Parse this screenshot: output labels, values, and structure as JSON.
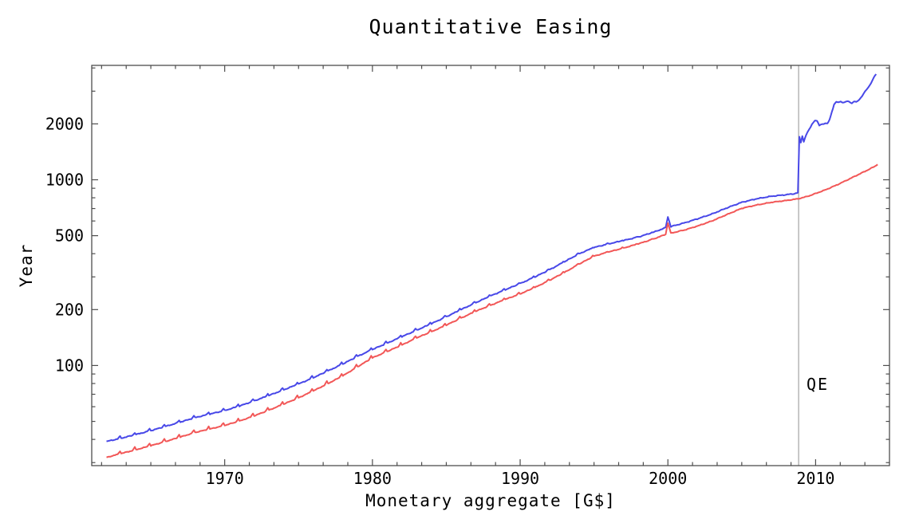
{
  "chart_data": {
    "type": "line",
    "title": "Quantitative Easing",
    "xlabel": "Monetary aggregate [G$]",
    "ylabel": "Year",
    "x_range": [
      1961,
      2015
    ],
    "y_range": [
      28.9,
      4130
    ],
    "y_scale": "log",
    "background": "#ffffff",
    "axis_color": "#4d4d4d",
    "x_axis": {
      "tick_values": [
        1970,
        1980,
        1990,
        2000,
        2010
      ],
      "tick_labels": [
        "1970",
        "1980",
        "1990",
        "2000",
        "2010"
      ],
      "minor_tick_step_years": 1.6667
    },
    "y_axis": {
      "tick_values": [
        100,
        200,
        500,
        1000,
        2000
      ],
      "tick_labels": [
        "100",
        "200",
        "500",
        "1000",
        "2000"
      ],
      "minor_tick_values": [
        30,
        40,
        50,
        60,
        70,
        80,
        90,
        300,
        400,
        600,
        700,
        800,
        900,
        3000,
        4000
      ]
    },
    "qe_line": {
      "x": 2008.85,
      "label": "QE",
      "color": "#aaaaaa"
    },
    "series": [
      {
        "name": "monetary-base-blue",
        "color": "#4848e8",
        "jitter": 0.006,
        "jitter_phase": 0,
        "annual_spike": {
          "amplitude": 0.032,
          "fade_start": 1980,
          "fade_end": 2003
        },
        "points": [
          [
            1962,
            39
          ],
          [
            1963,
            40.6
          ],
          [
            1964,
            42.5
          ],
          [
            1965,
            44.6
          ],
          [
            1966,
            47
          ],
          [
            1967,
            49.6
          ],
          [
            1968,
            52.4
          ],
          [
            1969,
            54.8
          ],
          [
            1970,
            57.2
          ],
          [
            1971,
            60.5
          ],
          [
            1972,
            64.5
          ],
          [
            1973,
            69
          ],
          [
            1974,
            74
          ],
          [
            1975,
            79.5
          ],
          [
            1976,
            86
          ],
          [
            1977,
            93.5
          ],
          [
            1978,
            102
          ],
          [
            1979,
            112
          ],
          [
            1980,
            122
          ],
          [
            1981,
            132
          ],
          [
            1982,
            143
          ],
          [
            1983,
            155
          ],
          [
            1984,
            168
          ],
          [
            1985,
            183
          ],
          [
            1986,
            200
          ],
          [
            1987,
            218
          ],
          [
            1988,
            237
          ],
          [
            1989,
            256
          ],
          [
            1990,
            276
          ],
          [
            1991,
            300
          ],
          [
            1992,
            328
          ],
          [
            1993,
            362
          ],
          [
            1994,
            400
          ],
          [
            1995,
            432
          ],
          [
            1996,
            452
          ],
          [
            1997,
            471
          ],
          [
            1998,
            492
          ],
          [
            1999,
            521
          ],
          [
            1999.85,
            552
          ],
          [
            2000,
            632
          ],
          [
            2000.2,
            560
          ],
          [
            2001,
            582
          ],
          [
            2002,
            616
          ],
          [
            2003,
            655
          ],
          [
            2004,
            706
          ],
          [
            2005,
            756
          ],
          [
            2006,
            790
          ],
          [
            2007,
            815
          ],
          [
            2008,
            831
          ],
          [
            2008.5,
            840
          ],
          [
            2008.8,
            851
          ],
          [
            2008.9,
            1700
          ],
          [
            2009,
            1585
          ],
          [
            2009.1,
            1725
          ],
          [
            2009.2,
            1605
          ],
          [
            2009.35,
            1740
          ],
          [
            2009.55,
            1855
          ],
          [
            2009.75,
            1990
          ],
          [
            2009.95,
            2090
          ],
          [
            2010.1,
            2065
          ],
          [
            2010.25,
            1962
          ],
          [
            2010.45,
            2000
          ],
          [
            2010.65,
            2008
          ],
          [
            2010.8,
            2005
          ],
          [
            2010.95,
            2110
          ],
          [
            2011.1,
            2330
          ],
          [
            2011.25,
            2540
          ],
          [
            2011.4,
            2625
          ],
          [
            2011.55,
            2605
          ],
          [
            2011.7,
            2650
          ],
          [
            2011.85,
            2600
          ],
          [
            2012.05,
            2630
          ],
          [
            2012.25,
            2645
          ],
          [
            2012.45,
            2580
          ],
          [
            2012.6,
            2645
          ],
          [
            2012.75,
            2615
          ],
          [
            2012.95,
            2700
          ],
          [
            2013.15,
            2830
          ],
          [
            2013.35,
            2985
          ],
          [
            2013.55,
            3130
          ],
          [
            2013.75,
            3320
          ],
          [
            2013.95,
            3560
          ],
          [
            2014.1,
            3710
          ]
        ]
      },
      {
        "name": "currency-red",
        "color": "#f25757",
        "jitter": 0.005,
        "jitter_phase": 2.1,
        "annual_spike": {
          "amplitude": 0.042,
          "fade_start": 1980,
          "fade_end": 2003
        },
        "points": [
          [
            1962,
            32
          ],
          [
            1963,
            33.6
          ],
          [
            1964,
            35.2
          ],
          [
            1965,
            37
          ],
          [
            1966,
            39
          ],
          [
            1967,
            41.2
          ],
          [
            1968,
            43.6
          ],
          [
            1969,
            45.5
          ],
          [
            1970,
            47.6
          ],
          [
            1971,
            50.2
          ],
          [
            1972,
            53.6
          ],
          [
            1973,
            57.5
          ],
          [
            1974,
            62
          ],
          [
            1975,
            67
          ],
          [
            1976,
            73
          ],
          [
            1977,
            80
          ],
          [
            1978,
            88
          ],
          [
            1979,
            98.5
          ],
          [
            1980,
            110
          ],
          [
            1981,
            119
          ],
          [
            1982,
            129
          ],
          [
            1983,
            141
          ],
          [
            1984,
            152
          ],
          [
            1985,
            165
          ],
          [
            1986,
            180
          ],
          [
            1987,
            196
          ],
          [
            1988,
            211
          ],
          [
            1989,
            227
          ],
          [
            1990,
            243
          ],
          [
            1991,
            263
          ],
          [
            1992,
            288
          ],
          [
            1993,
            317
          ],
          [
            1994,
            352
          ],
          [
            1995,
            388
          ],
          [
            1996,
            409
          ],
          [
            1997,
            429
          ],
          [
            1998,
            452
          ],
          [
            1999,
            479
          ],
          [
            1999.85,
            508
          ],
          [
            2000,
            585
          ],
          [
            2000.2,
            516
          ],
          [
            2001,
            533
          ],
          [
            2002,
            563
          ],
          [
            2003,
            601
          ],
          [
            2004,
            650
          ],
          [
            2005,
            702
          ],
          [
            2006,
            731
          ],
          [
            2007,
            756
          ],
          [
            2008,
            773
          ],
          [
            2008.85,
            791
          ],
          [
            2009.3,
            808
          ],
          [
            2009.7,
            826
          ],
          [
            2010.1,
            850
          ],
          [
            2010.5,
            872
          ],
          [
            2011,
            906
          ],
          [
            2011.5,
            943
          ],
          [
            2012,
            985
          ],
          [
            2012.5,
            1030
          ],
          [
            2013,
            1077
          ],
          [
            2013.5,
            1126
          ],
          [
            2014,
            1180
          ],
          [
            2014.2,
            1212
          ]
        ]
      }
    ]
  }
}
